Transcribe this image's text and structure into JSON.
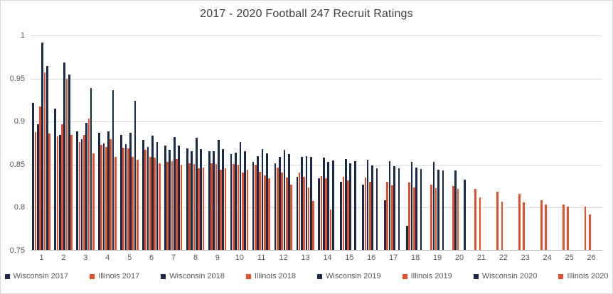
{
  "chart_data": {
    "type": "bar",
    "title": "2017 - 2020 Football 247 Recruit Ratings",
    "xlabel": "",
    "ylabel": "",
    "ylim": [
      0.75,
      1.0
    ],
    "yticks": [
      1,
      0.95,
      0.9,
      0.85,
      0.8,
      0.75
    ],
    "ytick_labels": [
      "1",
      "0.95",
      "0.9",
      "0.85",
      "0.8",
      "0.75"
    ],
    "categories": [
      "1",
      "2",
      "3",
      "4",
      "5",
      "6",
      "7",
      "8",
      "9",
      "10",
      "11",
      "12",
      "13",
      "14",
      "15",
      "16",
      "17",
      "18",
      "19",
      "20",
      "21",
      "22",
      "23",
      "24",
      "25",
      "26"
    ],
    "grid": true,
    "legend_position": "bottom",
    "colors": {
      "wisconsin": "#1b2a49",
      "illinois": "#e2512e"
    },
    "series": [
      {
        "name": "Wisconsin 2017",
        "color_key": "wisconsin",
        "values": [
          0.921,
          0.914,
          0.888,
          0.886,
          0.884,
          0.878,
          0.871,
          0.868,
          0.865,
          0.861,
          0.852,
          0.851,
          0.835,
          0.833,
          0.829,
          0.826,
          0.808,
          0.778
        ]
      },
      {
        "name": "Illinois 2017",
        "color_key": "illinois",
        "values": [
          0.887,
          0.882,
          0.875,
          0.872,
          0.869,
          0.866,
          0.852,
          0.851,
          0.851,
          0.85,
          0.849,
          0.846,
          0.84,
          0.836,
          0.835,
          0.834,
          0.829,
          0.828,
          0.826,
          0.824,
          0.821,
          0.818,
          0.815,
          0.808,
          0.803,
          0.8
        ]
      },
      {
        "name": "Wisconsin 2018",
        "color_key": "wisconsin",
        "values": [
          0.896,
          0.884,
          0.879,
          0.874,
          0.873,
          0.87,
          0.866,
          0.865,
          0.865,
          0.863,
          0.859,
          0.858,
          0.858,
          0.857,
          0.856,
          0.855,
          0.853,
          0.852,
          0.852,
          0.842
        ]
      },
      {
        "name": "Illinois 2018",
        "color_key": "illinois",
        "values": [
          0.917,
          0.896,
          0.884,
          0.87,
          0.868,
          0.858,
          0.853,
          0.85,
          0.85,
          0.849,
          0.841,
          0.84,
          0.835,
          0.833,
          0.831,
          0.829,
          0.825,
          0.823,
          0.822,
          0.821,
          0.811,
          0.806,
          0.805,
          0.803,
          0.8,
          0.791
        ]
      },
      {
        "name": "Wisconsin 2019",
        "color_key": "wisconsin",
        "values": [
          0.991,
          0.968,
          0.898,
          0.888,
          0.886,
          0.883,
          0.881,
          0.88,
          0.878,
          0.875,
          0.867,
          0.866,
          0.859,
          0.852,
          0.851,
          0.848,
          0.847,
          0.846,
          0.843
        ]
      },
      {
        "name": "Illinois 2019",
        "color_key": "illinois",
        "values": [
          0.956,
          0.949,
          0.903,
          0.879,
          0.858,
          0.857,
          0.856,
          0.845,
          0.843,
          0.84,
          0.837,
          0.834,
          0.823,
          0.797
        ]
      },
      {
        "name": "Wisconsin 2020",
        "color_key": "wisconsin",
        "values": [
          0.964,
          0.954,
          0.938,
          0.936,
          0.923,
          0.875,
          0.871,
          0.867,
          0.867,
          0.865,
          0.862,
          0.861,
          0.858,
          0.854,
          0.853,
          0.845,
          0.845,
          0.844,
          0.842,
          0.832
        ]
      },
      {
        "name": "Illinois 2020",
        "color_key": "illinois",
        "values": [
          0.885,
          0.884,
          0.862,
          0.858,
          0.855,
          0.851,
          0.849,
          0.846,
          0.845,
          0.843,
          0.833,
          0.826,
          0.807
        ]
      }
    ]
  }
}
